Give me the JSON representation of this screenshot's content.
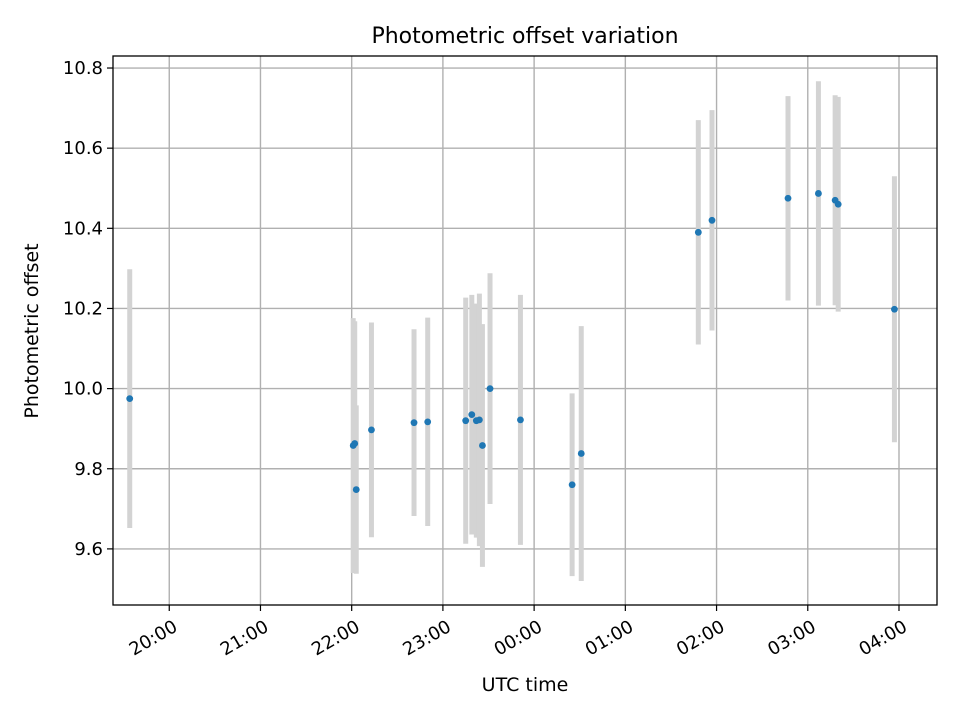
{
  "chart_data": {
    "type": "scatter",
    "title": "Photometric offset variation",
    "xlabel": "UTC time",
    "ylabel": "Photometric offset",
    "grid": true,
    "xlim": [
      "19:23",
      "04:25"
    ],
    "ylim": [
      9.46,
      10.83
    ],
    "x_ticks": [
      "20:00",
      "21:00",
      "22:00",
      "23:00",
      "00:00",
      "01:00",
      "02:00",
      "03:00",
      "04:00"
    ],
    "y_ticks": [
      "9.6",
      "9.8",
      "10.0",
      "10.2",
      "10.4",
      "10.6",
      "10.8"
    ],
    "colors": {
      "point": "#1f77b4",
      "errorbar": "#d3d3d3"
    },
    "points": [
      {
        "x": "19:34",
        "y": 9.975,
        "err": 0.323
      },
      {
        "x": "22:01",
        "y": 9.858,
        "err": 0.318
      },
      {
        "x": "22:02",
        "y": 9.863,
        "err": 0.305
      },
      {
        "x": "22:03",
        "y": 9.748,
        "err": 0.21
      },
      {
        "x": "22:13",
        "y": 9.897,
        "err": 0.268
      },
      {
        "x": "22:41",
        "y": 9.915,
        "err": 0.233
      },
      {
        "x": "22:50",
        "y": 9.917,
        "err": 0.26
      },
      {
        "x": "23:15",
        "y": 9.92,
        "err": 0.307
      },
      {
        "x": "23:19",
        "y": 9.935,
        "err": 0.299
      },
      {
        "x": "23:22",
        "y": 9.92,
        "err": 0.292
      },
      {
        "x": "23:24",
        "y": 9.922,
        "err": 0.315
      },
      {
        "x": "23:26",
        "y": 9.858,
        "err": 0.303
      },
      {
        "x": "23:31",
        "y": 10.0,
        "err": 0.288
      },
      {
        "x": "23:51",
        "y": 9.922,
        "err": 0.312
      },
      {
        "x": "00:25",
        "y": 9.76,
        "err": 0.228
      },
      {
        "x": "00:31",
        "y": 9.838,
        "err": 0.318
      },
      {
        "x": "01:48",
        "y": 10.39,
        "err": 0.28
      },
      {
        "x": "01:57",
        "y": 10.42,
        "err": 0.275
      },
      {
        "x": "02:47",
        "y": 10.475,
        "err": 0.255
      },
      {
        "x": "03:07",
        "y": 10.487,
        "err": 0.28
      },
      {
        "x": "03:18",
        "y": 10.47,
        "err": 0.262
      },
      {
        "x": "03:20",
        "y": 10.46,
        "err": 0.268
      },
      {
        "x": "03:57",
        "y": 10.198,
        "err": 0.332
      }
    ]
  }
}
